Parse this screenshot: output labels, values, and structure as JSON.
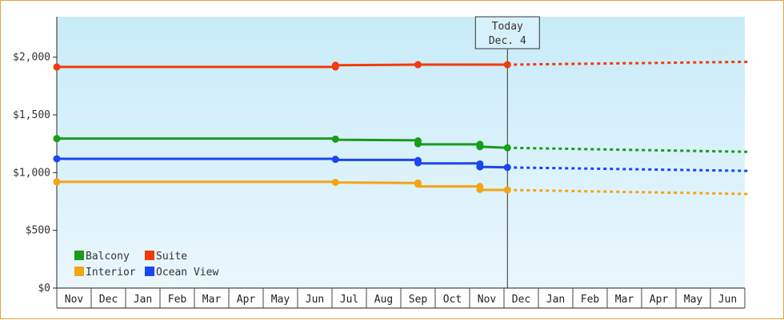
{
  "chart_data": {
    "type": "line",
    "y_ticks": [
      "$0",
      "$500",
      "$1,000",
      "$1,500",
      "$2,000"
    ],
    "ylim": [
      0,
      2350
    ],
    "months": [
      "Nov",
      "Dec",
      "Jan",
      "Feb",
      "Mar",
      "Apr",
      "May",
      "Jun",
      "Jul",
      "Aug",
      "Sep",
      "Oct",
      "Nov",
      "Dec",
      "Jan",
      "Feb",
      "Mar",
      "Apr",
      "May",
      "Jun"
    ],
    "today": {
      "line1": "Today",
      "line2": "Dec. 4",
      "x": 13.1
    },
    "colors": {
      "plot_bg_top": "#c8ebf8",
      "plot_bg_bottom": "#eaf7fd",
      "frame": "#e6a53f"
    },
    "series": [
      {
        "name": "Suite",
        "color": "#f03c0a",
        "actual": [
          [
            0,
            1915
          ],
          [
            8.1,
            1915
          ],
          [
            8.1,
            1930
          ],
          [
            10.5,
            1935
          ],
          [
            13.1,
            1935
          ]
        ],
        "markers": [
          [
            0,
            1915
          ],
          [
            8.1,
            1915
          ],
          [
            8.1,
            1930
          ],
          [
            10.5,
            1935
          ],
          [
            13.1,
            1935
          ]
        ],
        "forecast": [
          [
            13.1,
            1935
          ],
          [
            20.1,
            1960
          ]
        ]
      },
      {
        "name": "Balcony",
        "color": "#1a9b1a",
        "actual": [
          [
            0,
            1295
          ],
          [
            8.1,
            1295
          ],
          [
            8.1,
            1285
          ],
          [
            10.5,
            1280
          ],
          [
            10.5,
            1245
          ],
          [
            12.3,
            1245
          ],
          [
            12.3,
            1225
          ],
          [
            13.1,
            1215
          ]
        ],
        "markers": [
          [
            0,
            1295
          ],
          [
            8.1,
            1290
          ],
          [
            10.5,
            1275
          ],
          [
            10.5,
            1250
          ],
          [
            12.3,
            1245
          ],
          [
            12.3,
            1225
          ],
          [
            13.1,
            1215
          ]
        ],
        "forecast": [
          [
            13.1,
            1215
          ],
          [
            20.1,
            1180
          ]
        ]
      },
      {
        "name": "Ocean View",
        "color": "#1a46f0",
        "actual": [
          [
            0,
            1120
          ],
          [
            8.1,
            1120
          ],
          [
            8.1,
            1110
          ],
          [
            10.5,
            1110
          ],
          [
            10.5,
            1080
          ],
          [
            12.3,
            1080
          ],
          [
            12.3,
            1050
          ],
          [
            13.1,
            1045
          ]
        ],
        "markers": [
          [
            0,
            1120
          ],
          [
            8.1,
            1115
          ],
          [
            10.5,
            1105
          ],
          [
            10.5,
            1085
          ],
          [
            12.3,
            1075
          ],
          [
            12.3,
            1050
          ],
          [
            13.1,
            1045
          ]
        ],
        "forecast": [
          [
            13.1,
            1045
          ],
          [
            20.1,
            1015
          ]
        ]
      },
      {
        "name": "Interior",
        "color": "#f5a414",
        "actual": [
          [
            0,
            920
          ],
          [
            8.1,
            920
          ],
          [
            8.1,
            915
          ],
          [
            10.5,
            910
          ],
          [
            10.5,
            880
          ],
          [
            12.3,
            880
          ],
          [
            12.3,
            850
          ],
          [
            13.1,
            850
          ]
        ],
        "markers": [
          [
            0,
            920
          ],
          [
            8.1,
            915
          ],
          [
            10.5,
            910
          ],
          [
            10.5,
            900
          ],
          [
            12.3,
            880
          ],
          [
            12.3,
            855
          ],
          [
            13.1,
            850
          ]
        ],
        "forecast": [
          [
            13.1,
            850
          ],
          [
            20.1,
            815
          ]
        ]
      }
    ],
    "legend": [
      {
        "name": "Balcony",
        "color": "#1a9b1a"
      },
      {
        "name": "Suite",
        "color": "#f03c0a"
      },
      {
        "name": "Interior",
        "color": "#f5a414"
      },
      {
        "name": "Ocean View",
        "color": "#1a46f0"
      }
    ]
  }
}
